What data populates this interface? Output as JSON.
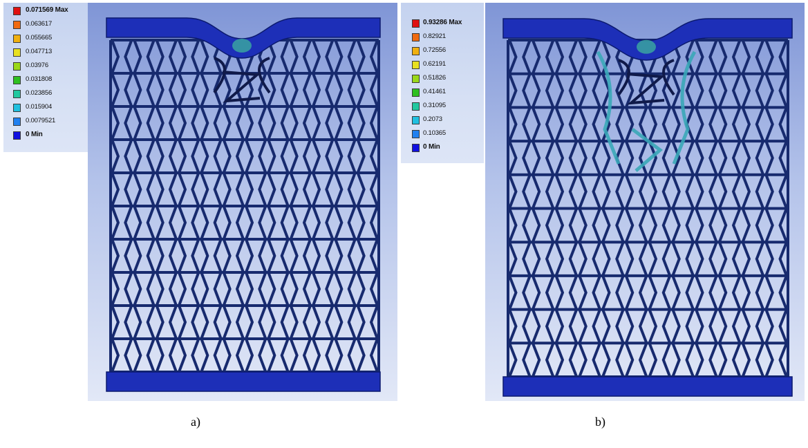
{
  "panels": [
    {
      "id": "a",
      "caption": "a)",
      "legend": {
        "labels": [
          "0.071569 Max",
          "0.063617",
          "0.055665",
          "0.047713",
          "0.03976",
          "0.031808",
          "0.023856",
          "0.015904",
          "0.0079521",
          "0 Min"
        ],
        "colors": [
          "#e01010",
          "#f06a10",
          "#f0b010",
          "#e8e020",
          "#9ad81a",
          "#2ec020",
          "#21c8a0",
          "#20c0e0",
          "#2080f0",
          "#1010e0"
        ]
      }
    },
    {
      "id": "b",
      "caption": "b)",
      "legend": {
        "labels": [
          "0.93286 Max",
          "0.82921",
          "0.72556",
          "0.62191",
          "0.51826",
          "0.41461",
          "0.31095",
          "0.2073",
          "0.10365",
          "0 Min"
        ],
        "colors": [
          "#e01010",
          "#f06a10",
          "#f0b010",
          "#e8e020",
          "#9ad81a",
          "#2ec020",
          "#21c8a0",
          "#20c0e0",
          "#2080f0",
          "#1010e0"
        ]
      }
    }
  ]
}
